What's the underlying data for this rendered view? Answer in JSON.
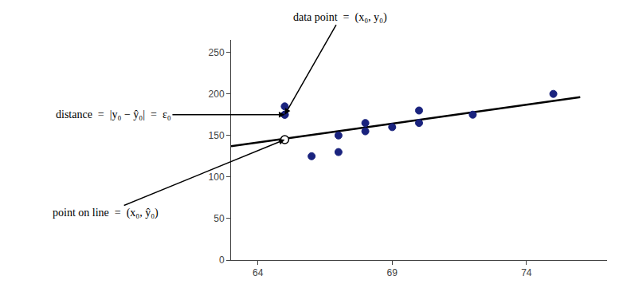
{
  "chart_data": {
    "type": "scatter",
    "series": [
      {
        "type": "scatter",
        "color": "#1a237e",
        "marker": "circle",
        "x": [
          65,
          65,
          66,
          67,
          67,
          68,
          68,
          69,
          70,
          70,
          72,
          75
        ],
        "values": [
          175,
          185,
          125,
          130,
          150,
          155,
          165,
          160,
          165,
          180,
          175,
          200
        ]
      },
      {
        "type": "line",
        "color": "#000000",
        "line_style": "solid",
        "x": [
          63,
          76
        ],
        "values": [
          137,
          196
        ]
      },
      {
        "type": "scatter",
        "color": "#1a237e",
        "marker": "circle",
        "x": [
          65
        ],
        "values": [
          175
        ]
      },
      {
        "type": "scatter",
        "color": "#000000",
        "marker": "open circle",
        "x": [
          65
        ],
        "values": [
          145
        ]
      }
    ],
    "annotations": [
      {
        "text": "data point  =  (x₀, y₀)",
        "x": 65,
        "y": 175
      },
      {
        "text": "distance  =  |y₀ − ŷ₀|  =  ε₀",
        "x": 65,
        "y": 175
      },
      {
        "text": "point on line  =  (x₀, ŷ₀)",
        "x": 65,
        "y": 145
      }
    ],
    "xlim": [
      63,
      77
    ],
    "ylim": [
      0,
      265
    ],
    "xticks": [
      64,
      69,
      74
    ],
    "yticks": [
      0,
      50,
      100,
      150,
      200,
      250
    ],
    "grid": false
  }
}
